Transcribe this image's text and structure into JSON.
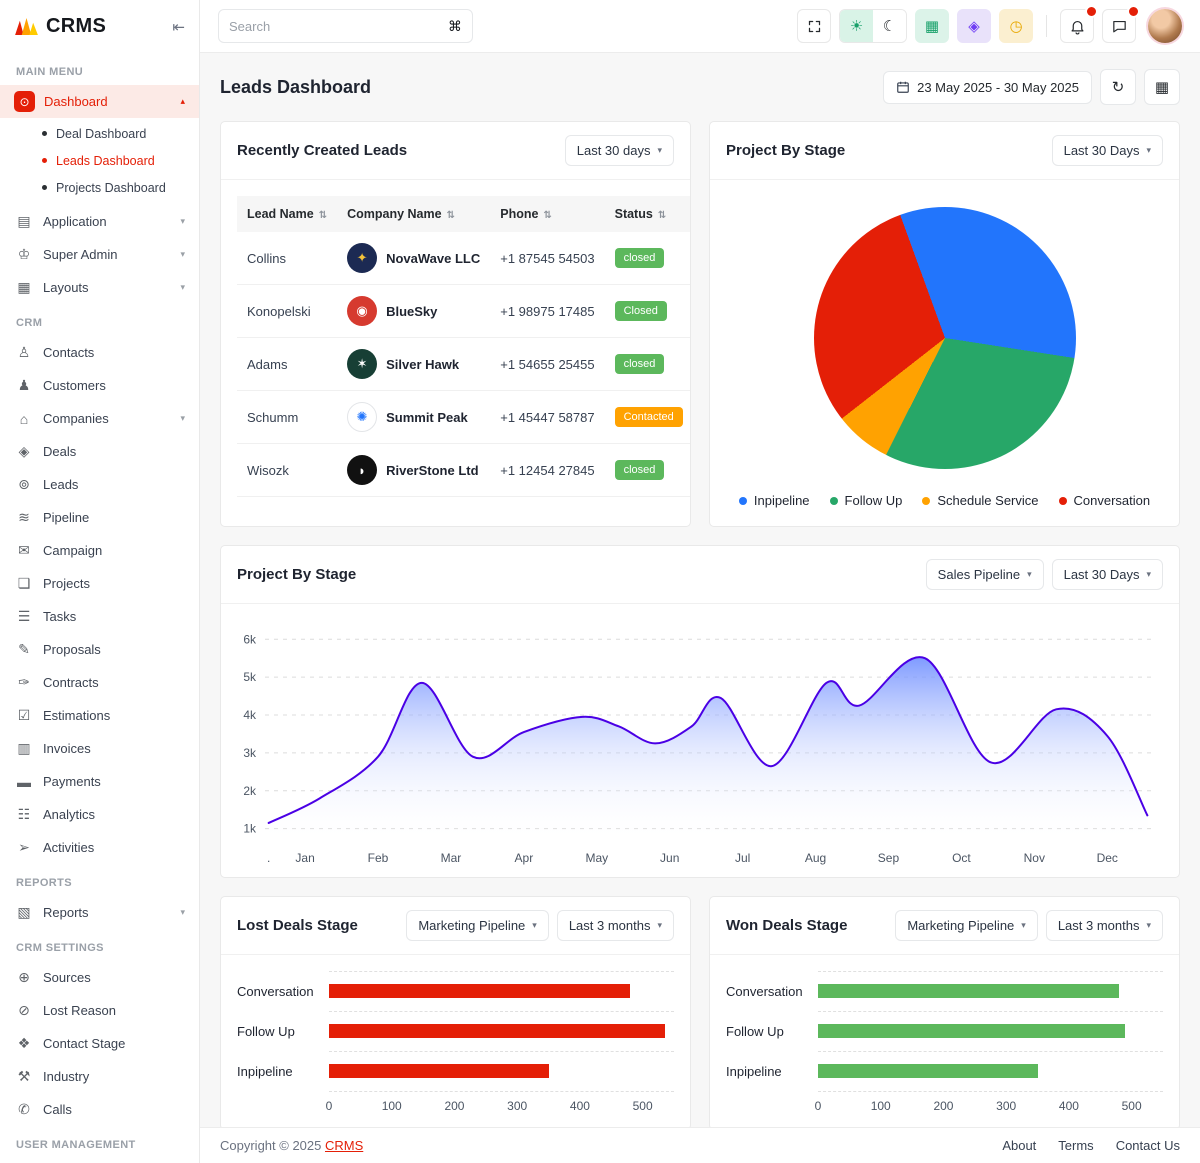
{
  "app": {
    "name": "CRMS"
  },
  "ui": {
    "chevron_down": "▾",
    "chevron_up": "▴",
    "sort_glyph": "⇅",
    "collapse_glyph": "⇤",
    "refresh_glyph": "↻",
    "panel_glyph": "▦",
    "search_shortcut": "⌘",
    "light_glyph": "☀",
    "dark_glyph": "☾",
    "apps_glyph": "▦",
    "widgets_glyph": "◈",
    "history_glyph": "◷"
  },
  "topbar": {
    "search_placeholder": "Search"
  },
  "page": {
    "title": "Leads Dashboard",
    "date_range": "23 May 2025 - 30 May 2025"
  },
  "sidebar": {
    "sections": [
      {
        "label": "MAIN MENU",
        "items": [
          {
            "label": "Dashboard",
            "glyph": "⊙",
            "active": true,
            "chevron": true,
            "expanded": true,
            "children": [
              {
                "label": "Deal Dashboard"
              },
              {
                "label": "Leads Dashboard",
                "active": true
              },
              {
                "label": "Projects Dashboard"
              }
            ]
          },
          {
            "label": "Application",
            "glyph": "▤",
            "chevron": true
          },
          {
            "label": "Super Admin",
            "glyph": "♔",
            "chevron": true
          },
          {
            "label": "Layouts",
            "glyph": "▦",
            "chevron": true
          }
        ]
      },
      {
        "label": "CRM",
        "items": [
          {
            "label": "Contacts",
            "glyph": "♙"
          },
          {
            "label": "Customers",
            "glyph": "♟"
          },
          {
            "label": "Companies",
            "glyph": "⌂",
            "chevron": true
          },
          {
            "label": "Deals",
            "glyph": "◈"
          },
          {
            "label": "Leads",
            "glyph": "⊚"
          },
          {
            "label": "Pipeline",
            "glyph": "≋"
          },
          {
            "label": "Campaign",
            "glyph": "✉"
          },
          {
            "label": "Projects",
            "glyph": "❏"
          },
          {
            "label": "Tasks",
            "glyph": "☰"
          },
          {
            "label": "Proposals",
            "glyph": "✎"
          },
          {
            "label": "Contracts",
            "glyph": "✑"
          },
          {
            "label": "Estimations",
            "glyph": "☑"
          },
          {
            "label": "Invoices",
            "glyph": "▥"
          },
          {
            "label": "Payments",
            "glyph": "▬"
          },
          {
            "label": "Analytics",
            "glyph": "☷"
          },
          {
            "label": "Activities",
            "glyph": "➢"
          }
        ]
      },
      {
        "label": "REPORTS",
        "items": [
          {
            "label": "Reports",
            "glyph": "▧",
            "chevron": true
          }
        ]
      },
      {
        "label": "CRM SETTINGS",
        "items": [
          {
            "label": "Sources",
            "glyph": "⊕"
          },
          {
            "label": "Lost Reason",
            "glyph": "⊘"
          },
          {
            "label": "Contact Stage",
            "glyph": "❖"
          },
          {
            "label": "Industry",
            "glyph": "⚒"
          },
          {
            "label": "Calls",
            "glyph": "✆"
          }
        ]
      },
      {
        "label": "USER MANAGEMENT",
        "items": []
      }
    ]
  },
  "cards": {
    "recent_leads": {
      "title": "Recently Created Leads",
      "filter": "Last 30 days"
    },
    "pie": {
      "title": "Project By Stage",
      "filter": "Last 30 Days"
    },
    "area": {
      "title": "Project By Stage",
      "filter1": "Sales Pipeline",
      "filter2": "Last 30 Days"
    },
    "lost": {
      "title": "Lost Deals Stage",
      "filter1": "Marketing Pipeline",
      "filter2": "Last 3 months"
    },
    "won": {
      "title": "Won Deals Stage",
      "filter1": "Marketing Pipeline",
      "filter2": "Last 3 months"
    }
  },
  "table": {
    "columns": [
      "Lead Name",
      "Company Name",
      "Phone",
      "Status"
    ],
    "rows": [
      {
        "lead": "Collins",
        "company": "NovaWave LLC",
        "phone": "+1 87545 54503",
        "status": "closed",
        "status_color": "#5CB85C",
        "logo_bg": "#1C2A53",
        "logo_color": "#F3C23A",
        "logo_glyph": "✦"
      },
      {
        "lead": "Konopelski",
        "company": "BlueSky",
        "phone": "+1 98975 17485",
        "status": "Closed",
        "status_color": "#5CB85C",
        "logo_bg": "#D63A2F",
        "logo_color": "#FFFFFF",
        "logo_glyph": "◉"
      },
      {
        "lead": "Adams",
        "company": "Silver Hawk",
        "phone": "+1 54655 25455",
        "status": "closed",
        "status_color": "#5CB85C",
        "logo_bg": "#173F35",
        "logo_color": "#FFFFFF",
        "logo_glyph": "✶"
      },
      {
        "lead": "Schumm",
        "company": "Summit Peak",
        "phone": "+1 45447 58787",
        "status": "Contacted",
        "status_color": "#FFA201",
        "logo_bg": "#FFFFFF",
        "logo_color": "#2275FC",
        "logo_glyph": "✺",
        "logo_border": "#E3E5E8"
      },
      {
        "lead": "Wisozk",
        "company": "RiverStone Ltd",
        "phone": "+1 12454 27845",
        "status": "closed",
        "status_color": "#5CB85C",
        "logo_bg": "#111111",
        "logo_color": "#FFFFFF",
        "logo_glyph": "◗"
      }
    ]
  },
  "chart_data": [
    {
      "type": "pie",
      "title": "Project By Stage",
      "labels": [
        "Inpipeline",
        "Follow Up",
        "Schedule Service",
        "Conversation"
      ],
      "values": [
        33,
        30,
        7,
        30
      ],
      "colors": [
        "#2275FC",
        "#27A768",
        "#FFA201",
        "#E41F07"
      ],
      "start_angle_deg": -20,
      "legend_position": "bottom"
    },
    {
      "type": "area",
      "title": "Project By Stage",
      "points": [
        [
          -0.5,
          1.15
        ],
        [
          0.2,
          1.8
        ],
        [
          1,
          2.9
        ],
        [
          1.6,
          4.85
        ],
        [
          2.3,
          2.9
        ],
        [
          3,
          3.55
        ],
        [
          3.8,
          3.95
        ],
        [
          4.3,
          3.7
        ],
        [
          4.8,
          3.25
        ],
        [
          5.3,
          3.7
        ],
        [
          5.7,
          4.45
        ],
        [
          6.4,
          2.65
        ],
        [
          7.15,
          4.85
        ],
        [
          7.6,
          4.25
        ],
        [
          8.5,
          5.5
        ],
        [
          9.4,
          2.75
        ],
        [
          10.3,
          4.15
        ],
        [
          11,
          3.45
        ],
        [
          11.55,
          1.35
        ]
      ],
      "xlim": [
        -0.55,
        11.6
      ],
      "ylim": [
        0.7,
        6.35
      ],
      "yticks": [
        {
          "v": 1,
          "label": "1k"
        },
        {
          "v": 2,
          "label": "2k"
        },
        {
          "v": 3,
          "label": "3k"
        },
        {
          "v": 4,
          "label": "4k"
        },
        {
          "v": 5,
          "label": "5k"
        },
        {
          "v": 6,
          "label": "6k"
        }
      ],
      "xticks": [
        {
          "t": -0.5,
          "label": "."
        },
        {
          "t": 0,
          "label": "Jan"
        },
        {
          "t": 1,
          "label": "Feb"
        },
        {
          "t": 2,
          "label": "Mar"
        },
        {
          "t": 3,
          "label": "Apr"
        },
        {
          "t": 4,
          "label": "May"
        },
        {
          "t": 5,
          "label": "Jun"
        },
        {
          "t": 6,
          "label": "Jul"
        },
        {
          "t": 7,
          "label": "Aug"
        },
        {
          "t": 8,
          "label": "Sep"
        },
        {
          "t": 9,
          "label": "Oct"
        },
        {
          "t": 10,
          "label": "Nov"
        },
        {
          "t": 11,
          "label": "Dec"
        }
      ],
      "line_color": "#4A00E5",
      "fill_gradient": [
        "rgba(104,137,255,0.85)",
        "rgba(186,201,255,0.40)",
        "rgba(255,255,255,0.03)"
      ],
      "grid": "horizontal-dashed"
    },
    {
      "type": "bar",
      "orientation": "horizontal",
      "title": "Lost Deals Stage",
      "categories": [
        "Conversation",
        "Follow Up",
        "Inpipeline"
      ],
      "values": [
        480,
        535,
        350
      ],
      "bar_color": "#E41F07",
      "xticks": [
        0,
        100,
        200,
        300,
        400,
        500
      ],
      "xmax": 550
    },
    {
      "type": "bar",
      "orientation": "horizontal",
      "title": "Won Deals Stage",
      "categories": [
        "Conversation",
        "Follow Up",
        "Inpipeline"
      ],
      "values": [
        480,
        490,
        350
      ],
      "bar_color": "#5CB85C",
      "xticks": [
        0,
        100,
        200,
        300,
        400,
        500
      ],
      "xmax": 550
    }
  ],
  "footer": {
    "copyright_prefix": "Copyright © 2025 ",
    "brand": "CRMS",
    "links": [
      "About",
      "Terms",
      "Contact Us"
    ]
  }
}
